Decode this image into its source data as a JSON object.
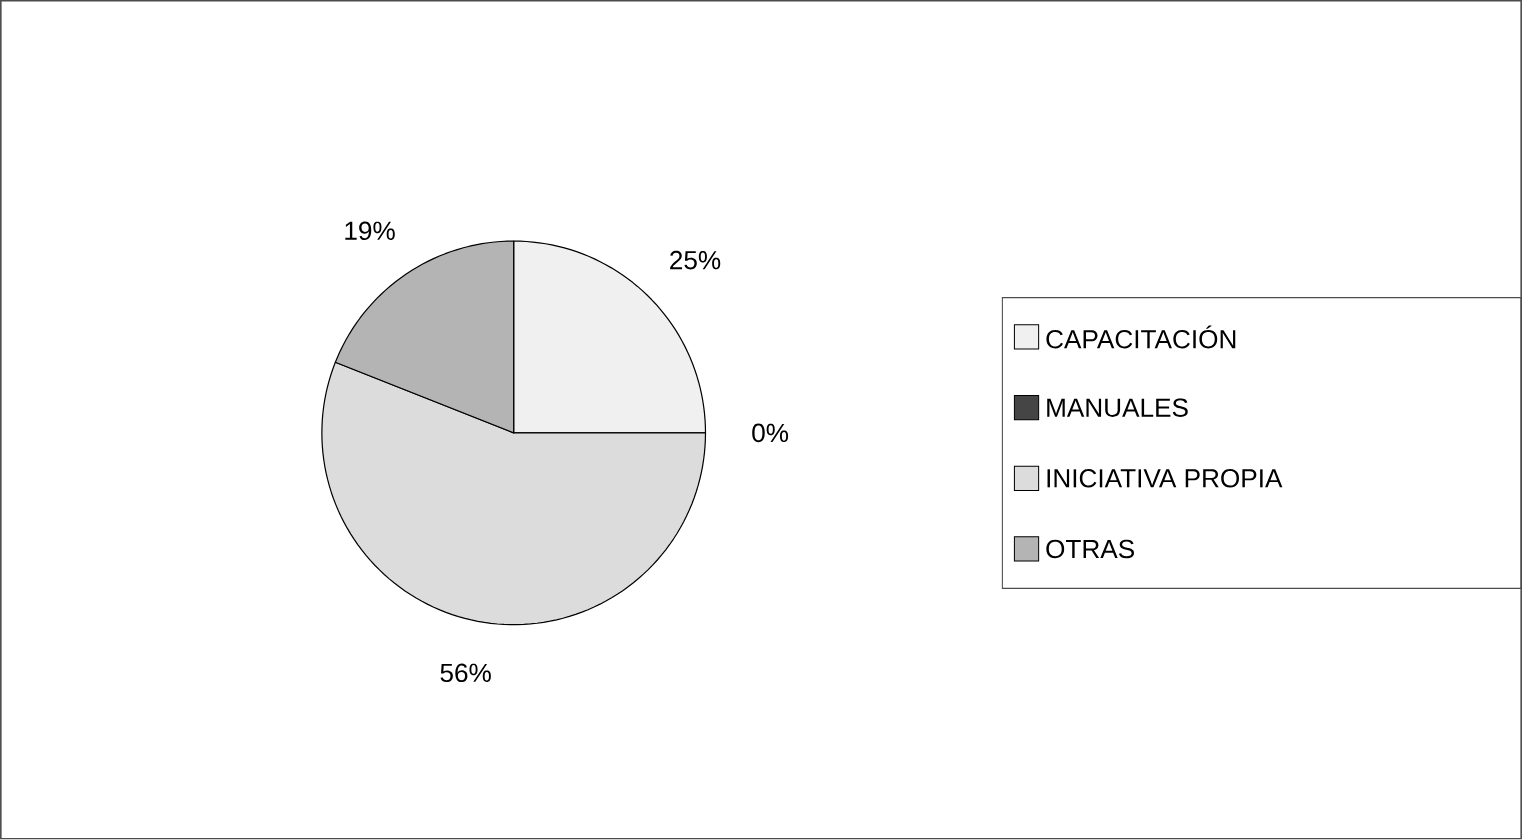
{
  "chart_data": {
    "type": "pie",
    "categories": [
      "CAPACITACIÓN",
      "MANUALES",
      "INICIATIVA PROPIA",
      "OTRAS"
    ],
    "values": [
      25,
      0,
      56,
      19
    ],
    "colors": [
      "#f0f0f0",
      "#454545",
      "#dcdcdc",
      "#b4b4b4"
    ],
    "value_labels": [
      "25%",
      "0%",
      "56%",
      "19%"
    ],
    "legend": "right"
  }
}
